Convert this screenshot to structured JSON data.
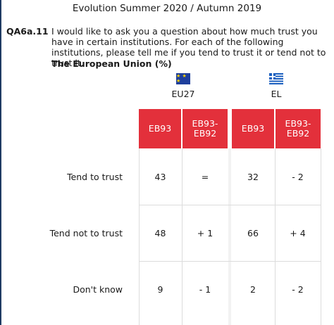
{
  "heading": "Evolution Summer 2020 / Autumn 2019",
  "question": {
    "code": "QA6a.11",
    "text": "I would like to ask you a question about how much trust you have in certain institutions. For each of the following institutions, please tell me if you tend to trust it or tend not to trust it.",
    "subtitle": "The European Union  (%)"
  },
  "groups": [
    {
      "label": "EU27",
      "flag_icon": "eu-flag-icon",
      "colors": [
        "#1e3f9c",
        "#f5d000"
      ]
    },
    {
      "label": "EL",
      "flag_icon": "greece-flag-icon",
      "colors": [
        "#1b5fbf",
        "#ffffff"
      ]
    }
  ],
  "columns": [
    "EB93",
    "EB93-\nEB92",
    "EB93",
    "EB93-\nEB92"
  ],
  "header_color": "#e3303b",
  "rows": [
    {
      "label": "Tend to trust",
      "values": [
        "43",
        "=",
        "32",
        "- 2"
      ]
    },
    {
      "label": "Tend not to trust",
      "values": [
        "48",
        "+ 1",
        "66",
        "+ 4"
      ]
    },
    {
      "label": "Don't know",
      "values": [
        "9",
        "- 1",
        "2",
        "- 2"
      ]
    }
  ]
}
